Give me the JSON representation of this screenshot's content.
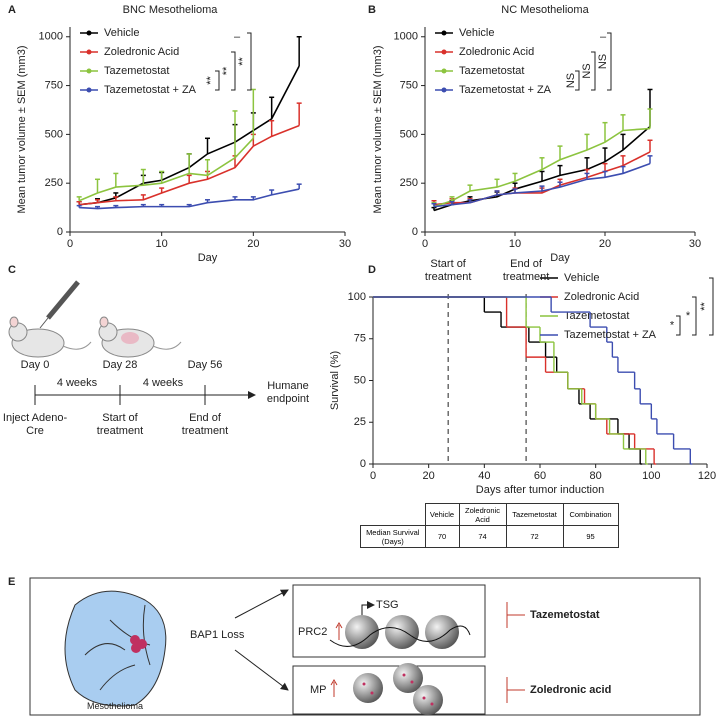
{
  "panel_labels": [
    "A",
    "B",
    "C",
    "D",
    "E"
  ],
  "chart_data": [
    {
      "type": "line",
      "title": "BNC Mesothelioma",
      "x_label": "Day",
      "y_label": "Mean tumor volume ± SEM (mm3)",
      "xlim": [
        0,
        30
      ],
      "xticks": [
        0,
        10,
        20,
        30
      ],
      "ylim": [
        0,
        1050
      ],
      "yticks": [
        0,
        250,
        500,
        750,
        1000
      ],
      "x": [
        1,
        3,
        5,
        8,
        10,
        13,
        15,
        18,
        20,
        22,
        25
      ],
      "series": [
        {
          "name": "Vehicle",
          "color": "#000000",
          "values": [
            140,
            150,
            175,
            250,
            265,
            330,
            400,
            460,
            520,
            580,
            850
          ],
          "errors": [
            15,
            20,
            25,
            40,
            40,
            70,
            80,
            90,
            90,
            110,
            150
          ]
        },
        {
          "name": "Zoledronic Acid",
          "color": "#d9312b",
          "values": [
            140,
            150,
            160,
            165,
            200,
            250,
            270,
            330,
            440,
            490,
            545
          ],
          "errors": [
            15,
            15,
            20,
            25,
            25,
            40,
            40,
            60,
            60,
            80,
            115
          ]
        },
        {
          "name": "Tazemetostat",
          "color": "#8cc43f",
          "values": [
            160,
            200,
            230,
            240,
            250,
            300,
            290,
            380,
            480,
            null,
            null
          ],
          "errors": [
            20,
            70,
            70,
            80,
            60,
            100,
            80,
            240,
            250,
            null,
            null
          ]
        },
        {
          "name": "Tazemetostat + ZA",
          "color": "#3c4db0",
          "values": [
            125,
            120,
            125,
            130,
            130,
            130,
            150,
            165,
            165,
            190,
            220
          ],
          "errors": [
            10,
            10,
            10,
            10,
            10,
            10,
            15,
            15,
            15,
            25,
            25
          ]
        }
      ],
      "significance": [
        "–",
        "**",
        "**",
        "**"
      ]
    },
    {
      "type": "line",
      "title": "NC Mesothelioma",
      "x_label": "Day",
      "y_label": "Mean tumor volume ± SEM (mm3)",
      "xlim": [
        0,
        30
      ],
      "xticks": [
        0,
        10,
        20,
        30
      ],
      "ylim": [
        0,
        1050
      ],
      "yticks": [
        0,
        250,
        500,
        750,
        1000
      ],
      "x": [
        1,
        3,
        5,
        8,
        10,
        13,
        15,
        18,
        20,
        22,
        25
      ],
      "series": [
        {
          "name": "Vehicle",
          "color": "#000000",
          "values": [
            110,
            140,
            160,
            180,
            220,
            260,
            290,
            320,
            360,
            420,
            540
          ],
          "errors": [
            15,
            20,
            20,
            25,
            30,
            50,
            50,
            60,
            70,
            80,
            190
          ]
        },
        {
          "name": "Zoledronic Acid",
          "color": "#d9312b",
          "values": [
            140,
            150,
            150,
            190,
            200,
            200,
            240,
            280,
            310,
            340,
            410
          ],
          "errors": [
            20,
            20,
            20,
            20,
            25,
            25,
            30,
            40,
            40,
            50,
            60
          ]
        },
        {
          "name": "Tazemetostat",
          "color": "#8cc43f",
          "values": [
            130,
            160,
            210,
            230,
            260,
            320,
            370,
            420,
            460,
            520,
            530
          ],
          "errors": [
            20,
            20,
            30,
            40,
            40,
            60,
            70,
            80,
            100,
            80,
            100
          ]
        },
        {
          "name": "Tazemetostat + ZA",
          "color": "#3c4db0",
          "values": [
            130,
            140,
            150,
            190,
            200,
            210,
            230,
            270,
            280,
            300,
            350
          ],
          "errors": [
            15,
            15,
            15,
            20,
            20,
            25,
            25,
            30,
            30,
            35,
            40
          ]
        }
      ],
      "significance": [
        "–",
        "NS",
        "NS",
        "NS"
      ]
    },
    {
      "type": "step",
      "x_label": "Days after tumor induction",
      "y_label": "Survival (%)",
      "xlim": [
        0,
        120
      ],
      "xticks": [
        0,
        20,
        40,
        60,
        80,
        100,
        120
      ],
      "ylim": [
        0,
        100
      ],
      "yticks": [
        0,
        25,
        50,
        75,
        100
      ],
      "markers": [
        {
          "label": "Start of treatment",
          "x": 27
        },
        {
          "label": "End of treatment",
          "x": 55
        }
      ],
      "series": [
        {
          "name": "Vehicle",
          "color": "#000000",
          "x": [
            0,
            40,
            46,
            56,
            62,
            66,
            70,
            74,
            78,
            88,
            92,
            96
          ],
          "values": [
            100,
            91,
            82,
            73,
            64,
            55,
            45,
            36,
            27,
            18,
            9,
            0
          ]
        },
        {
          "name": "Zoledronic Acid",
          "color": "#d9312b",
          "x": [
            0,
            48,
            55,
            62,
            70,
            76,
            80,
            84,
            94,
            101
          ],
          "values": [
            100,
            82,
            64,
            55,
            45,
            36,
            27,
            18,
            9,
            0
          ]
        },
        {
          "name": "Tazemetostat",
          "color": "#8cc43f",
          "x": [
            0,
            55,
            60,
            65,
            70,
            75,
            80,
            85,
            90,
            98
          ],
          "values": [
            100,
            82,
            73,
            55,
            45,
            36,
            27,
            18,
            9,
            0
          ]
        },
        {
          "name": "Tazemetostat + ZA",
          "color": "#3c4db0",
          "x": [
            0,
            64,
            78,
            84,
            86,
            88,
            94,
            96,
            100,
            102,
            108,
            114
          ],
          "values": [
            100,
            91,
            82,
            73,
            64,
            55,
            45,
            36,
            27,
            18,
            9,
            0
          ]
        }
      ],
      "significance": [
        "*",
        "*",
        "**"
      ]
    }
  ],
  "timeline": {
    "days": [
      "Day 0",
      "Day 28",
      "Day 56"
    ],
    "intervals": [
      "4 weeks",
      "4 weeks"
    ],
    "events": [
      "Inject Adeno-Cre",
      "Start of treatment",
      "End of treatment"
    ],
    "endpoint": "Humane endpoint"
  },
  "survival_table": {
    "columns": [
      "Vehicle",
      "Zoledronic Acid",
      "Tazemetostat",
      "Combination"
    ],
    "rows": [
      {
        "label": "Median Survival (Days)",
        "values": [
          70,
          74,
          72,
          95
        ]
      }
    ]
  },
  "mechanism": {
    "tissue": "Mesothelioma",
    "event": "BAP1 Loss",
    "targets": [
      {
        "name": "PRC2",
        "gene": "TSG",
        "drug": "Tazemetostat"
      },
      {
        "name": "MP",
        "drug": "Zoledronic acid"
      }
    ]
  }
}
